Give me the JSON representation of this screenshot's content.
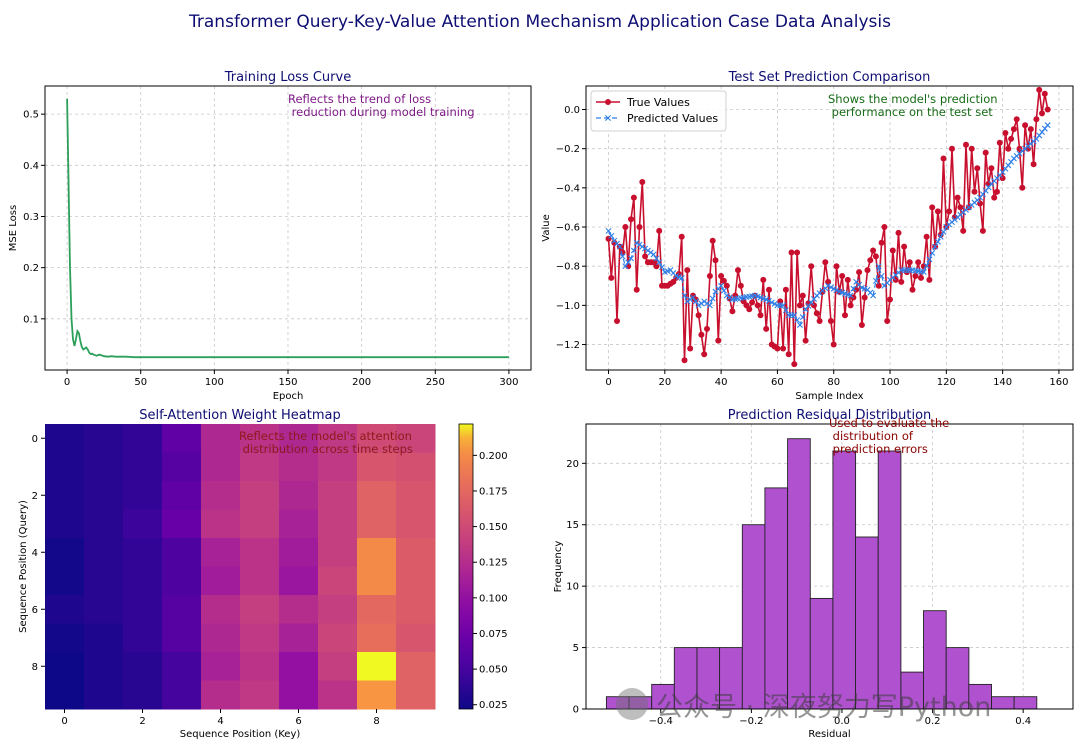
{
  "figure_title": "Transformer Query-Key-Value Attention Mechanism Application Case Data Analysis",
  "colors": {
    "title": "#0d0d73",
    "loss_line": "#2ca05a",
    "true_line": "#c8102e",
    "pred_line": "#2f7fe8",
    "annotation_loss": "#7d1a86",
    "annotation_pred": "#166b16",
    "annotation_heat": "#8b1a1a",
    "annotation_resid": "#8b0000",
    "hist_fill": "#b052d0",
    "hist_edge": "#222222"
  },
  "watermark": {
    "text": "公众号 · 深夜努力写Python",
    "icon": "wechat-logo-icon"
  },
  "chart_data": [
    {
      "id": "loss",
      "type": "line",
      "title": "Training Loss Curve",
      "xlabel": "Epoch",
      "ylabel": "MSE Loss",
      "xlim": [
        -15,
        315
      ],
      "ylim": [
        0.0,
        0.555
      ],
      "xticks": [
        0,
        50,
        100,
        150,
        200,
        250,
        300
      ],
      "yticks": [
        0.1,
        0.2,
        0.3,
        0.4,
        0.5
      ],
      "ytick_labels": [
        "0.1",
        "0.2",
        "0.3",
        "0.4",
        "0.5"
      ],
      "grid": true,
      "annotation": "Reflects the trend of loss\n reduction during model training",
      "series": [
        {
          "name": "Training Loss",
          "x": [
            0,
            1,
            2,
            3,
            4,
            5,
            6,
            7,
            8,
            9,
            10,
            11,
            12,
            13,
            14,
            15,
            16,
            17,
            18,
            20,
            22,
            25,
            28,
            30,
            33,
            36,
            40,
            45,
            50,
            60,
            80,
            100,
            150,
            200,
            250,
            300
          ],
          "y": [
            0.53,
            0.36,
            0.2,
            0.1,
            0.06,
            0.047,
            0.06,
            0.076,
            0.072,
            0.057,
            0.045,
            0.04,
            0.042,
            0.044,
            0.04,
            0.034,
            0.031,
            0.032,
            0.03,
            0.028,
            0.03,
            0.027,
            0.026,
            0.027,
            0.026,
            0.026,
            0.026,
            0.025,
            0.025,
            0.025,
            0.025,
            0.025,
            0.025,
            0.025,
            0.025,
            0.025
          ]
        }
      ]
    },
    {
      "id": "prediction",
      "type": "line",
      "title": "Test Set Prediction Comparison",
      "xlabel": "Sample Index",
      "ylabel": "Value",
      "xlim": [
        -8,
        165
      ],
      "ylim": [
        -1.33,
        0.12
      ],
      "xticks": [
        0,
        20,
        40,
        60,
        80,
        100,
        120,
        140,
        160
      ],
      "yticks": [
        0.0,
        -0.2,
        -0.4,
        -0.6,
        -0.8,
        -1.0,
        -1.2
      ],
      "ytick_labels": [
        "0.0",
        "−0.2",
        "−0.4",
        "−0.6",
        "−0.8",
        "−1.0",
        "−1.2"
      ],
      "grid": true,
      "legend": "upper-left",
      "annotation": "Shows the model's prediction\n performance on the test set",
      "true_anchors": [
        [
          0,
          -0.66
        ],
        [
          1,
          -0.86
        ],
        [
          2,
          -0.68
        ],
        [
          3,
          -1.08
        ],
        [
          4,
          -0.7
        ],
        [
          5,
          -0.73
        ],
        [
          6,
          -0.6
        ],
        [
          7,
          -0.8
        ],
        [
          8,
          -0.56
        ],
        [
          9,
          -0.45
        ],
        [
          10,
          -0.92
        ],
        [
          11,
          -0.6
        ],
        [
          12,
          -0.37
        ],
        [
          13,
          -0.75
        ],
        [
          14,
          -0.78
        ],
        [
          16,
          -0.78
        ],
        [
          17,
          -0.8
        ],
        [
          18,
          -0.62
        ],
        [
          19,
          -0.9
        ],
        [
          21,
          -0.9
        ],
        [
          23,
          -0.88
        ],
        [
          25,
          -0.84
        ],
        [
          26,
          -0.65
        ],
        [
          27,
          -1.28
        ],
        [
          28,
          -0.82
        ],
        [
          29,
          -1.22
        ],
        [
          30,
          -0.95
        ],
        [
          31,
          -0.97
        ],
        [
          32,
          -1.05
        ],
        [
          34,
          -1.25
        ],
        [
          35,
          -1.12
        ],
        [
          36,
          -0.85
        ],
        [
          37,
          -0.67
        ],
        [
          38,
          -0.77
        ],
        [
          39,
          -1.18
        ],
        [
          40,
          -0.85
        ],
        [
          42,
          -0.9
        ],
        [
          44,
          -1.03
        ],
        [
          45,
          -0.95
        ],
        [
          46,
          -0.82
        ],
        [
          48,
          -0.98
        ],
        [
          50,
          -1.02
        ],
        [
          52,
          -0.95
        ],
        [
          54,
          -1.05
        ],
        [
          55,
          -0.87
        ],
        [
          56,
          -1.12
        ],
        [
          57,
          -0.92
        ],
        [
          58,
          -1.2
        ],
        [
          60,
          -1.22
        ],
        [
          61,
          -0.98
        ],
        [
          62,
          -1.22
        ],
        [
          63,
          -0.92
        ],
        [
          64,
          -1.25
        ],
        [
          65,
          -0.73
        ],
        [
          66,
          -1.3
        ],
        [
          67,
          -0.73
        ],
        [
          68,
          -1.0
        ],
        [
          69,
          -0.95
        ],
        [
          70,
          -1.18
        ],
        [
          72,
          -0.8
        ],
        [
          73,
          -1.0
        ],
        [
          75,
          -1.08
        ],
        [
          77,
          -0.78
        ],
        [
          78,
          -0.88
        ],
        [
          79,
          -1.08
        ],
        [
          80,
          -1.2
        ],
        [
          81,
          -0.8
        ],
        [
          82,
          -0.93
        ],
        [
          83,
          -0.85
        ],
        [
          84,
          -1.05
        ],
        [
          85,
          -0.87
        ],
        [
          86,
          -1.0
        ],
        [
          88,
          -0.92
        ],
        [
          89,
          -0.83
        ],
        [
          90,
          -1.1
        ],
        [
          92,
          -0.82
        ],
        [
          94,
          -0.72
        ],
        [
          95,
          -0.75
        ],
        [
          96,
          -0.9
        ],
        [
          97,
          -0.68
        ],
        [
          98,
          -0.6
        ],
        [
          99,
          -1.08
        ],
        [
          100,
          -0.97
        ],
        [
          101,
          -0.72
        ],
        [
          102,
          -0.87
        ],
        [
          103,
          -0.63
        ],
        [
          104,
          -0.88
        ],
        [
          105,
          -0.7
        ],
        [
          106,
          -0.83
        ],
        [
          107,
          -0.78
        ],
        [
          108,
          -0.92
        ],
        [
          109,
          -0.85
        ],
        [
          110,
          -0.78
        ],
        [
          111,
          -0.86
        ],
        [
          112,
          -0.8
        ],
        [
          113,
          -0.65
        ],
        [
          114,
          -0.87
        ],
        [
          115,
          -0.5
        ],
        [
          116,
          -0.7
        ],
        [
          117,
          -0.52
        ],
        [
          118,
          -0.64
        ],
        [
          119,
          -0.25
        ],
        [
          120,
          -0.6
        ],
        [
          121,
          -0.52
        ],
        [
          122,
          -0.2
        ],
        [
          123,
          -0.55
        ],
        [
          124,
          -0.45
        ],
        [
          125,
          -0.5
        ],
        [
          126,
          -0.62
        ],
        [
          127,
          -0.18
        ],
        [
          128,
          -0.5
        ],
        [
          129,
          -0.2
        ],
        [
          130,
          -0.42
        ],
        [
          131,
          -0.3
        ],
        [
          132,
          -0.48
        ],
        [
          133,
          -0.62
        ],
        [
          134,
          -0.22
        ],
        [
          135,
          -0.38
        ],
        [
          136,
          -0.3
        ],
        [
          137,
          -0.45
        ],
        [
          138,
          -0.42
        ],
        [
          139,
          -0.17
        ],
        [
          140,
          -0.35
        ],
        [
          141,
          -0.12
        ],
        [
          142,
          -0.2
        ],
        [
          143,
          -0.15
        ],
        [
          144,
          -0.1
        ],
        [
          145,
          -0.05
        ],
        [
          146,
          -0.2
        ],
        [
          147,
          -0.4
        ],
        [
          148,
          -0.08
        ],
        [
          149,
          -0.2
        ],
        [
          150,
          -0.1
        ],
        [
          151,
          -0.28
        ],
        [
          152,
          -0.05
        ],
        [
          153,
          0.1
        ],
        [
          154,
          -0.02
        ],
        [
          155,
          0.08
        ],
        [
          156,
          0.0
        ]
      ],
      "pred_anchors": [
        [
          0,
          -0.62
        ],
        [
          2,
          -0.67
        ],
        [
          4,
          -0.7
        ],
        [
          6,
          -0.8
        ],
        [
          8,
          -0.76
        ],
        [
          10,
          -0.68
        ],
        [
          12,
          -0.7
        ],
        [
          14,
          -0.72
        ],
        [
          16,
          -0.74
        ],
        [
          18,
          -0.78
        ],
        [
          20,
          -0.83
        ],
        [
          22,
          -0.82
        ],
        [
          24,
          -0.85
        ],
        [
          26,
          -0.86
        ],
        [
          27,
          -0.95
        ],
        [
          28,
          -0.98
        ],
        [
          30,
          -0.96
        ],
        [
          32,
          -1.0
        ],
        [
          34,
          -0.98
        ],
        [
          36,
          -1.0
        ],
        [
          38,
          -0.93
        ],
        [
          40,
          -0.9
        ],
        [
          42,
          -0.95
        ],
        [
          44,
          -0.97
        ],
        [
          48,
          -0.96
        ],
        [
          52,
          -0.95
        ],
        [
          56,
          -0.97
        ],
        [
          60,
          -1.0
        ],
        [
          62,
          -1.0
        ],
        [
          64,
          -1.05
        ],
        [
          66,
          -1.05
        ],
        [
          68,
          -1.1
        ],
        [
          70,
          -1.02
        ],
        [
          74,
          -0.95
        ],
        [
          78,
          -0.9
        ],
        [
          82,
          -0.93
        ],
        [
          86,
          -0.95
        ],
        [
          88,
          -0.88
        ],
        [
          90,
          -0.91
        ],
        [
          92,
          -0.92
        ],
        [
          94,
          -0.95
        ],
        [
          96,
          -0.8
        ],
        [
          98,
          -0.9
        ],
        [
          100,
          -0.87
        ],
        [
          104,
          -0.82
        ],
        [
          108,
          -0.82
        ],
        [
          112,
          -0.83
        ],
        [
          116,
          -0.7
        ],
        [
          120,
          -0.6
        ],
        [
          124,
          -0.55
        ],
        [
          128,
          -0.5
        ],
        [
          132,
          -0.45
        ],
        [
          136,
          -0.38
        ],
        [
          140,
          -0.32
        ],
        [
          144,
          -0.25
        ],
        [
          148,
          -0.2
        ],
        [
          152,
          -0.15
        ],
        [
          156,
          -0.08
        ]
      ],
      "series": [
        {
          "name": "True Values",
          "marker": "circle"
        },
        {
          "name": "Predicted Values",
          "marker": "x"
        }
      ]
    },
    {
      "id": "heatmap",
      "type": "heatmap",
      "title": "Self-Attention Weight Heatmap",
      "xlabel": "Sequence Position (Key)",
      "ylabel": "Sequence Position (Query)",
      "xticks": [
        0,
        2,
        4,
        6,
        8
      ],
      "yticks": [
        0,
        2,
        4,
        6,
        8
      ],
      "colormap": "plasma",
      "vmin": 0.022,
      "vmax": 0.222,
      "colorbar_ticks": [
        0.025,
        0.05,
        0.075,
        0.1,
        0.125,
        0.15,
        0.175,
        0.2
      ],
      "colorbar_tick_labels": [
        "0.025",
        "0.050",
        "0.075",
        "0.100",
        "0.125",
        "0.150",
        "0.175",
        "0.200"
      ],
      "annotation": "Reflects the model's attention\n distribution across time steps",
      "matrix": [
        [
          0.03,
          0.035,
          0.04,
          0.065,
          0.12,
          0.13,
          0.12,
          0.135,
          0.15,
          0.145
        ],
        [
          0.03,
          0.035,
          0.04,
          0.06,
          0.12,
          0.135,
          0.125,
          0.135,
          0.16,
          0.155
        ],
        [
          0.03,
          0.035,
          0.04,
          0.065,
          0.125,
          0.14,
          0.12,
          0.14,
          0.17,
          0.16
        ],
        [
          0.03,
          0.035,
          0.045,
          0.07,
          0.13,
          0.14,
          0.115,
          0.14,
          0.17,
          0.16
        ],
        [
          0.025,
          0.035,
          0.04,
          0.055,
          0.115,
          0.13,
          0.11,
          0.14,
          0.2,
          0.165
        ],
        [
          0.025,
          0.035,
          0.04,
          0.055,
          0.11,
          0.13,
          0.105,
          0.145,
          0.2,
          0.165
        ],
        [
          0.03,
          0.035,
          0.04,
          0.06,
          0.125,
          0.14,
          0.125,
          0.14,
          0.175,
          0.165
        ],
        [
          0.025,
          0.03,
          0.04,
          0.06,
          0.12,
          0.135,
          0.115,
          0.145,
          0.18,
          0.16
        ],
        [
          0.022,
          0.03,
          0.035,
          0.05,
          0.115,
          0.13,
          0.1,
          0.14,
          0.222,
          0.17
        ],
        [
          0.022,
          0.03,
          0.035,
          0.05,
          0.125,
          0.135,
          0.1,
          0.13,
          0.205,
          0.17
        ]
      ]
    },
    {
      "id": "residual",
      "type": "bar",
      "title": "Prediction Residual Distribution",
      "xlabel": "Residual",
      "ylabel": "Frequency",
      "xlim": [
        -0.565,
        0.51
      ],
      "ylim": [
        0,
        23.2
      ],
      "xticks": [
        -0.4,
        -0.2,
        0.0,
        0.2,
        0.4
      ],
      "xtick_labels": [
        "−0.4",
        "−0.2",
        "0.0",
        "0.2",
        "0.4"
      ],
      "yticks": [
        0,
        5,
        10,
        15,
        20
      ],
      "grid": true,
      "annotation": "Used to evaluate the\n distribution of\n prediction errors",
      "bin_start": -0.52,
      "bin_width": 0.05,
      "values": [
        1,
        1,
        2,
        5,
        5,
        5,
        15,
        18,
        22,
        9,
        21,
        14,
        21,
        3,
        8,
        5,
        2,
        1,
        1
      ]
    }
  ]
}
